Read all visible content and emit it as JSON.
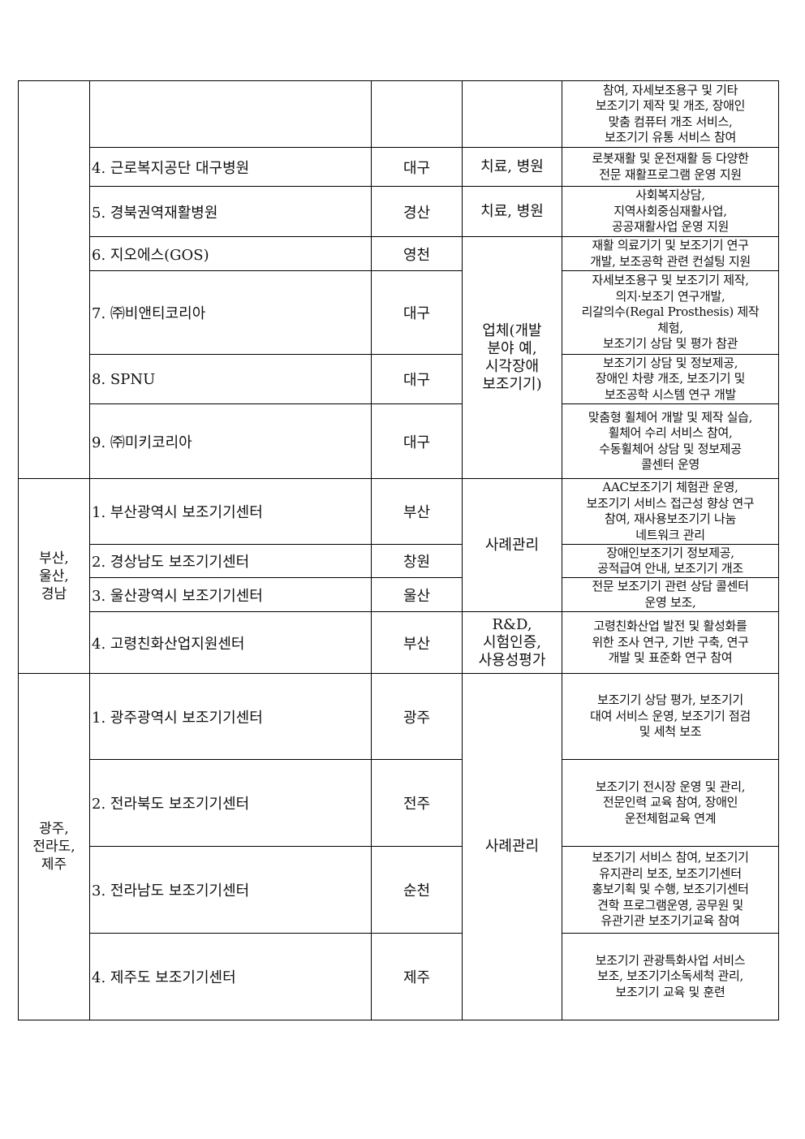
{
  "rows": [
    {
      "name": "",
      "location": "",
      "description": "참여, 자세보조용구 및 기타\n보조기기 제작 및 개조, 장애인\n맞춤 컴퓨터 개조 서비스,\n보조기기 유통 서비스 참여"
    },
    {
      "name": "4. 근로복지공단 대구병원",
      "location": "대구",
      "type": "치료, 병원",
      "description": "로봇재활 및 운전재활 등 다양한\n전문 재활프로그램 운영 지원"
    },
    {
      "name": "5. 경북권역재활병원",
      "location": "경산",
      "type": "치료, 병원",
      "description": "사회복지상담,\n지역사회중심재활사업,\n공공재활사업 운영 지원"
    },
    {
      "name": "6. 지오에스(GOS)",
      "location": "영천",
      "description": "재활 의료기기 및 보조기기 연구\n개발, 보조공학 관련 컨설팅 지원"
    },
    {
      "name": "7. ㈜비앤티코리아",
      "location": "대구",
      "description": "자세보조용구 및 보조기기 제작,\n의지·보조기 연구개발,\n리갈의수(Regal Prosthesis) 제작\n체험,\n보조기기 상담 및 평가 참관"
    },
    {
      "name": "8. SPNU",
      "location": "대구",
      "description": "보조기기 상담 및 정보제공,\n장애인 차량 개조,  보조기기 및\n보조공학 시스템 연구 개발"
    },
    {
      "name": "9. ㈜미키코리아",
      "location": "대구",
      "description": "맞춤형 휠체어 개발 및 제작 실습,\n휠체어 수리 서비스 참여,\n수동휠체어 상담 및 정보제공\n콜센터 운영"
    },
    {
      "name": "1. 부산광역시 보조기기센터",
      "location": "부산",
      "description": "AAC보조기기 체험관 운영,\n보조기기 서비스 접근성 향상 연구\n참여, 재사용보조기기 나눔\n네트워크 관리"
    },
    {
      "name": "2. 경상남도 보조기기센터",
      "location": "창원",
      "description": "장애인보조기기 정보제공,\n공적급여 안내, 보조기기 개조"
    },
    {
      "name": "3. 울산광역시 보조기기센터",
      "location": "울산",
      "description": "전문 보조기기 관련 상담 콜센터\n운영 보조,"
    },
    {
      "name": "4. 고령친화산업지원센터",
      "location": "부산",
      "type": "R&D,\n시험인증,\n사용성평가",
      "description": "고령친화산업 발전 및 활성화를\n위한 조사 연구, 기반 구축, 연구\n개발 및 표준화 연구 참여"
    },
    {
      "name": "1. 광주광역시 보조기기센터",
      "location": "광주",
      "description": "보조기기 상담 평가, 보조기기\n대여 서비스 운영, 보조기기 점검\n및 세척 보조"
    },
    {
      "name": "2. 전라북도 보조기기센터",
      "location": "전주",
      "description": "보조기기 전시장 운영 및 관리,\n전문인력 교육 참여, 장애인\n운전체험교육 연계"
    },
    {
      "name": "3. 전라남도 보조기기센터",
      "location": "순천",
      "description": "보조기기 서비스 참여, 보조기기\n유지관리 보조, 보조기기센터\n홍보기획 및 수행, 보조기기센터\n견학 프로그램운영, 공무원 및\n유관기관 보조기기교육 참여"
    },
    {
      "name": "4. 제주도 보조기기센터",
      "location": "제주",
      "description": "보조기기 관광특화사업 서비스\n보조, 보조기기소독세척 관리,\n보조기기 교육 및 훈련"
    }
  ],
  "groups": {
    "company_type": "업체(개발\n분야 예,\n시각장애\n보조기기)",
    "case_mgmt_1": "사례관리",
    "case_mgmt_2": "사례관리",
    "region_busan": "부산,\n울산,\n경남",
    "region_gwangju": "광주,\n전라도,\n제주"
  }
}
